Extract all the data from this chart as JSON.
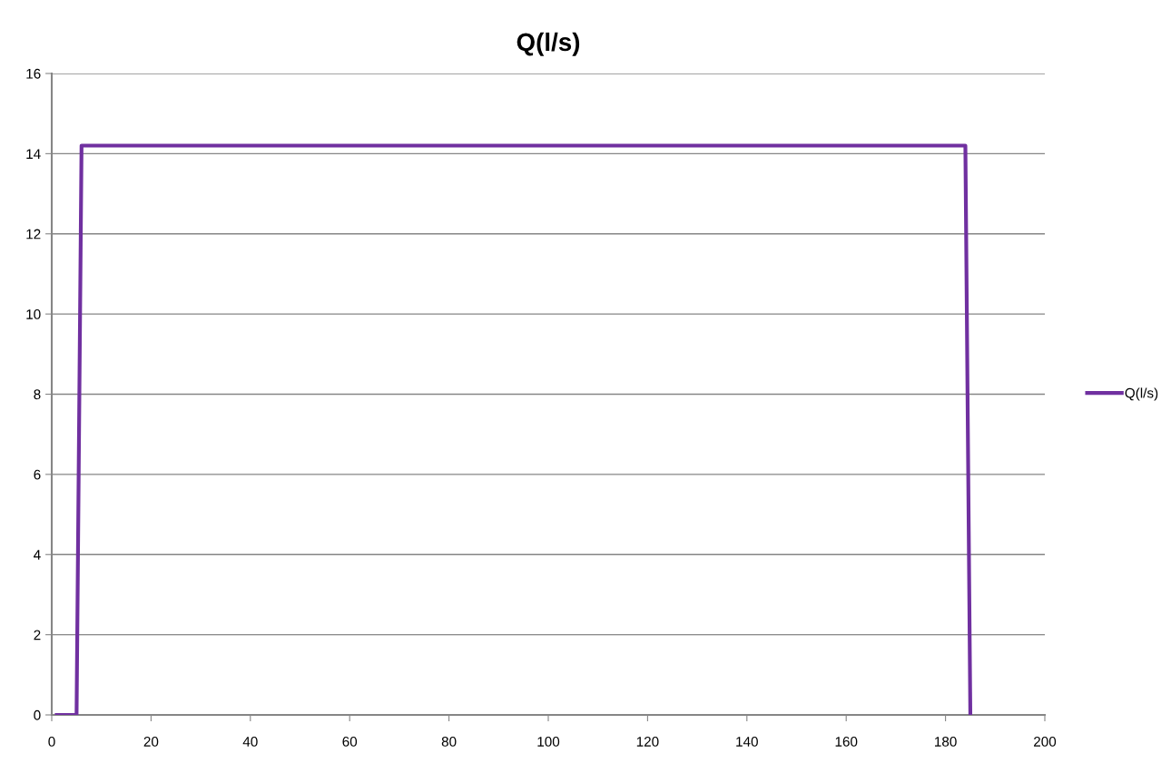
{
  "chart_data": {
    "type": "line",
    "title": "Q(l/s)",
    "x": [
      1,
      5,
      6,
      184,
      185
    ],
    "series": [
      {
        "name": "Q(l/s)",
        "color": "#7030a0",
        "values": [
          0,
          0,
          14.2,
          14.2,
          0
        ]
      }
    ],
    "xlim": [
      0,
      200
    ],
    "xticks": [
      0,
      20,
      40,
      60,
      80,
      100,
      120,
      140,
      160,
      180,
      200
    ],
    "ylim": [
      0,
      16
    ],
    "yticks": [
      0,
      2,
      4,
      6,
      8,
      10,
      12,
      14,
      16
    ],
    "grid": "y",
    "legend": "right",
    "marker": "none",
    "line_style": "solid"
  }
}
